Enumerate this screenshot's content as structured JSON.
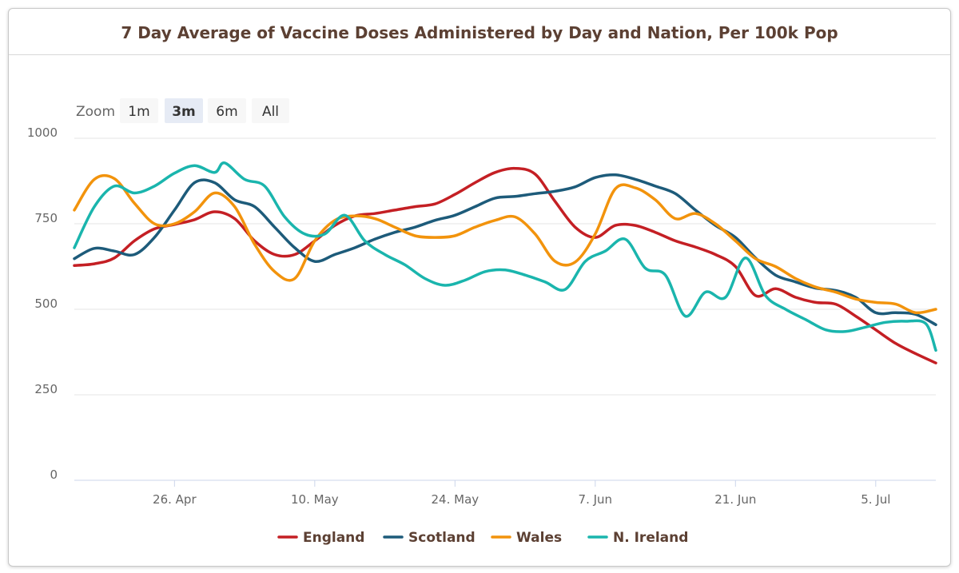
{
  "chart_data": {
    "type": "line",
    "title": "7 Day Average of Vaccine Doses Administered by Day and Nation, Per 100k Pop",
    "xlabel": "",
    "ylabel": "",
    "ylim": [
      0,
      1000
    ],
    "yticks": [
      0,
      250,
      500,
      750,
      1000
    ],
    "x_range": [
      "2021-04-16",
      "2021-07-11"
    ],
    "xticks": [
      {
        "date": "2021-04-26",
        "label": "26. Apr"
      },
      {
        "date": "2021-05-10",
        "label": "10. May"
      },
      {
        "date": "2021-05-24",
        "label": "24. May"
      },
      {
        "date": "2021-06-07",
        "label": "7. Jun"
      },
      {
        "date": "2021-06-21",
        "label": "21. Jun"
      },
      {
        "date": "2021-07-05",
        "label": "5. Jul"
      }
    ],
    "legend": "bottom-center",
    "grid": true,
    "series": [
      {
        "name": "England",
        "color": "#c41f24",
        "points": [
          [
            "2021-04-16",
            628
          ],
          [
            "2021-04-18",
            633
          ],
          [
            "2021-04-20",
            650
          ],
          [
            "2021-04-22",
            700
          ],
          [
            "2021-04-24",
            735
          ],
          [
            "2021-04-26",
            748
          ],
          [
            "2021-04-28",
            762
          ],
          [
            "2021-04-30",
            785
          ],
          [
            "2021-05-02",
            765
          ],
          [
            "2021-05-04",
            700
          ],
          [
            "2021-05-06",
            660
          ],
          [
            "2021-05-08",
            660
          ],
          [
            "2021-05-10",
            700
          ],
          [
            "2021-05-12",
            745
          ],
          [
            "2021-05-14",
            773
          ],
          [
            "2021-05-16",
            780
          ],
          [
            "2021-05-18",
            790
          ],
          [
            "2021-05-20",
            800
          ],
          [
            "2021-05-22",
            808
          ],
          [
            "2021-05-24",
            836
          ],
          [
            "2021-05-26",
            870
          ],
          [
            "2021-05-28",
            900
          ],
          [
            "2021-05-30",
            912
          ],
          [
            "2021-06-01",
            895
          ],
          [
            "2021-06-03",
            815
          ],
          [
            "2021-06-05",
            740
          ],
          [
            "2021-06-07",
            710
          ],
          [
            "2021-06-09",
            745
          ],
          [
            "2021-06-11",
            745
          ],
          [
            "2021-06-13",
            725
          ],
          [
            "2021-06-15",
            700
          ],
          [
            "2021-06-17",
            682
          ],
          [
            "2021-06-19",
            660
          ],
          [
            "2021-06-21",
            625
          ],
          [
            "2021-06-23",
            540
          ],
          [
            "2021-06-25",
            560
          ],
          [
            "2021-06-27",
            535
          ],
          [
            "2021-06-29",
            520
          ],
          [
            "2021-07-01",
            515
          ],
          [
            "2021-07-03",
            480
          ],
          [
            "2021-07-05",
            440
          ],
          [
            "2021-07-07",
            400
          ],
          [
            "2021-07-09",
            370
          ],
          [
            "2021-07-11",
            343
          ]
        ]
      },
      {
        "name": "Scotland",
        "color": "#1d5b7a",
        "points": [
          [
            "2021-04-16",
            648
          ],
          [
            "2021-04-18",
            678
          ],
          [
            "2021-04-20",
            670
          ],
          [
            "2021-04-22",
            660
          ],
          [
            "2021-04-24",
            710
          ],
          [
            "2021-04-26",
            790
          ],
          [
            "2021-04-28",
            870
          ],
          [
            "2021-04-30",
            870
          ],
          [
            "2021-05-02",
            820
          ],
          [
            "2021-05-04",
            800
          ],
          [
            "2021-05-06",
            740
          ],
          [
            "2021-05-08",
            680
          ],
          [
            "2021-05-10",
            640
          ],
          [
            "2021-05-12",
            660
          ],
          [
            "2021-05-14",
            680
          ],
          [
            "2021-05-16",
            705
          ],
          [
            "2021-05-18",
            725
          ],
          [
            "2021-05-20",
            740
          ],
          [
            "2021-05-22",
            760
          ],
          [
            "2021-05-24",
            775
          ],
          [
            "2021-05-26",
            800
          ],
          [
            "2021-05-28",
            825
          ],
          [
            "2021-05-30",
            830
          ],
          [
            "2021-06-01",
            838
          ],
          [
            "2021-06-03",
            845
          ],
          [
            "2021-06-05",
            858
          ],
          [
            "2021-06-07",
            885
          ],
          [
            "2021-06-09",
            893
          ],
          [
            "2021-06-11",
            880
          ],
          [
            "2021-06-13",
            860
          ],
          [
            "2021-06-15",
            838
          ],
          [
            "2021-06-17",
            790
          ],
          [
            "2021-06-19",
            745
          ],
          [
            "2021-06-21",
            710
          ],
          [
            "2021-06-23",
            650
          ],
          [
            "2021-06-25",
            600
          ],
          [
            "2021-06-27",
            580
          ],
          [
            "2021-06-29",
            562
          ],
          [
            "2021-07-01",
            555
          ],
          [
            "2021-07-03",
            535
          ],
          [
            "2021-07-05",
            490
          ],
          [
            "2021-07-07",
            490
          ],
          [
            "2021-07-09",
            485
          ],
          [
            "2021-07-11",
            455
          ]
        ]
      },
      {
        "name": "Wales",
        "color": "#f2930c",
        "points": [
          [
            "2021-04-16",
            790
          ],
          [
            "2021-04-18",
            880
          ],
          [
            "2021-04-20",
            882
          ],
          [
            "2021-04-22",
            810
          ],
          [
            "2021-04-24",
            750
          ],
          [
            "2021-04-26",
            750
          ],
          [
            "2021-04-28",
            785
          ],
          [
            "2021-04-30",
            840
          ],
          [
            "2021-05-02",
            800
          ],
          [
            "2021-05-04",
            690
          ],
          [
            "2021-05-06",
            610
          ],
          [
            "2021-05-08",
            590
          ],
          [
            "2021-05-10",
            700
          ],
          [
            "2021-05-12",
            760
          ],
          [
            "2021-05-14",
            773
          ],
          [
            "2021-05-16",
            765
          ],
          [
            "2021-05-18",
            740
          ],
          [
            "2021-05-20",
            715
          ],
          [
            "2021-05-22",
            710
          ],
          [
            "2021-05-24",
            715
          ],
          [
            "2021-05-26",
            740
          ],
          [
            "2021-05-28",
            760
          ],
          [
            "2021-05-30",
            770
          ],
          [
            "2021-06-01",
            720
          ],
          [
            "2021-06-03",
            640
          ],
          [
            "2021-06-05",
            638
          ],
          [
            "2021-06-07",
            720
          ],
          [
            "2021-06-09",
            852
          ],
          [
            "2021-06-11",
            855
          ],
          [
            "2021-06-13",
            820
          ],
          [
            "2021-06-15",
            765
          ],
          [
            "2021-06-17",
            780
          ],
          [
            "2021-06-19",
            750
          ],
          [
            "2021-06-21",
            700
          ],
          [
            "2021-06-23",
            648
          ],
          [
            "2021-06-25",
            625
          ],
          [
            "2021-06-27",
            590
          ],
          [
            "2021-06-29",
            565
          ],
          [
            "2021-07-01",
            550
          ],
          [
            "2021-07-03",
            530
          ],
          [
            "2021-07-05",
            520
          ],
          [
            "2021-07-07",
            515
          ],
          [
            "2021-07-09",
            490
          ],
          [
            "2021-07-11",
            500
          ]
        ]
      },
      {
        "name": "N. Ireland",
        "color": "#1ab5ad",
        "points": [
          [
            "2021-04-16",
            680
          ],
          [
            "2021-04-18",
            800
          ],
          [
            "2021-04-20",
            860
          ],
          [
            "2021-04-22",
            840
          ],
          [
            "2021-04-24",
            860
          ],
          [
            "2021-04-26",
            898
          ],
          [
            "2021-04-28",
            920
          ],
          [
            "2021-04-30",
            900
          ],
          [
            "2021-05-01",
            928
          ],
          [
            "2021-05-03",
            880
          ],
          [
            "2021-05-05",
            860
          ],
          [
            "2021-05-07",
            770
          ],
          [
            "2021-05-09",
            720
          ],
          [
            "2021-05-11",
            720
          ],
          [
            "2021-05-13",
            775
          ],
          [
            "2021-05-15",
            700
          ],
          [
            "2021-05-17",
            660
          ],
          [
            "2021-05-19",
            630
          ],
          [
            "2021-05-21",
            590
          ],
          [
            "2021-05-23",
            570
          ],
          [
            "2021-05-25",
            585
          ],
          [
            "2021-05-27",
            610
          ],
          [
            "2021-05-29",
            615
          ],
          [
            "2021-05-31",
            600
          ],
          [
            "2021-06-02",
            580
          ],
          [
            "2021-06-04",
            558
          ],
          [
            "2021-06-06",
            640
          ],
          [
            "2021-06-08",
            670
          ],
          [
            "2021-06-10",
            705
          ],
          [
            "2021-06-12",
            620
          ],
          [
            "2021-06-14",
            600
          ],
          [
            "2021-06-16",
            480
          ],
          [
            "2021-06-18",
            550
          ],
          [
            "2021-06-20",
            535
          ],
          [
            "2021-06-22",
            650
          ],
          [
            "2021-06-24",
            540
          ],
          [
            "2021-06-26",
            500
          ],
          [
            "2021-06-28",
            470
          ],
          [
            "2021-06-30",
            440
          ],
          [
            "2021-07-02",
            435
          ],
          [
            "2021-07-04",
            448
          ],
          [
            "2021-07-06",
            462
          ],
          [
            "2021-07-08",
            465
          ],
          [
            "2021-07-10",
            458
          ],
          [
            "2021-07-11",
            380
          ]
        ]
      }
    ]
  },
  "zoom": {
    "label": "Zoom",
    "buttons": [
      {
        "label": "1m",
        "selected": false
      },
      {
        "label": "3m",
        "selected": true
      },
      {
        "label": "6m",
        "selected": false
      },
      {
        "label": "All",
        "selected": false
      }
    ]
  }
}
